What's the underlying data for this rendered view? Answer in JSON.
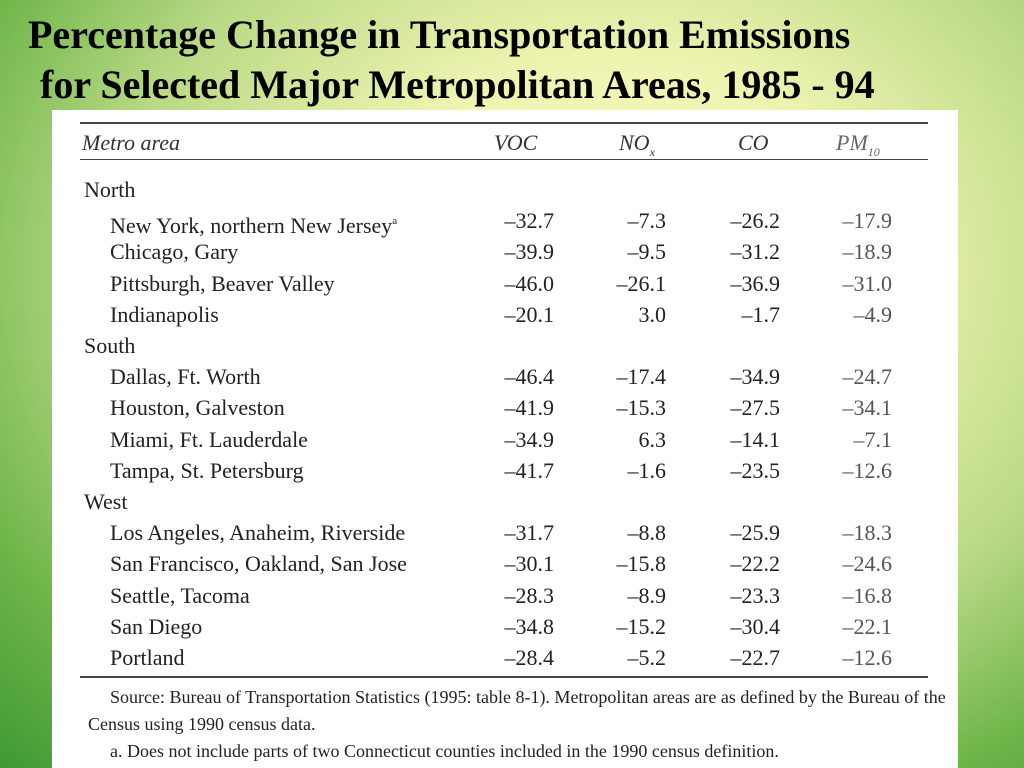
{
  "slide": {
    "title_line1": "Percentage Change in Transportation Emissions",
    "title_line2": "for Selected Major Metropolitan Areas, 1985 - 94"
  },
  "table": {
    "headers": {
      "metro": "Metro area",
      "voc": "VOC",
      "nox_main": "NO",
      "nox_sub": "x",
      "co": "CO",
      "pm_main": "PM",
      "pm_sub": "10"
    },
    "rows": [
      {
        "kind": "region",
        "name": "North"
      },
      {
        "kind": "metro",
        "name": "New York, northern New Jersey",
        "note": "a",
        "voc": "–32.7",
        "nox": "–7.3",
        "co": "–26.2",
        "pm": "–17.9"
      },
      {
        "kind": "metro",
        "name": "Chicago, Gary",
        "voc": "–39.9",
        "nox": "–9.5",
        "co": "–31.2",
        "pm": "–18.9"
      },
      {
        "kind": "metro",
        "name": "Pittsburgh, Beaver Valley",
        "voc": "–46.0",
        "nox": "–26.1",
        "co": "–36.9",
        "pm": "–31.0"
      },
      {
        "kind": "metro",
        "name": "Indianapolis",
        "voc": "–20.1",
        "nox": "3.0",
        "co": "–1.7",
        "pm": "–4.9"
      },
      {
        "kind": "region",
        "name": "South"
      },
      {
        "kind": "metro",
        "name": "Dallas, Ft. Worth",
        "voc": "–46.4",
        "nox": "–17.4",
        "co": "–34.9",
        "pm": "–24.7"
      },
      {
        "kind": "metro",
        "name": "Houston, Galveston",
        "voc": "–41.9",
        "nox": "–15.3",
        "co": "–27.5",
        "pm": "–34.1"
      },
      {
        "kind": "metro",
        "name": "Miami, Ft. Lauderdale",
        "voc": "–34.9",
        "nox": "6.3",
        "co": "–14.1",
        "pm": "–7.1"
      },
      {
        "kind": "metro",
        "name": "Tampa, St. Petersburg",
        "voc": "–41.7",
        "nox": "–1.6",
        "co": "–23.5",
        "pm": "–12.6"
      },
      {
        "kind": "region",
        "name": "West"
      },
      {
        "kind": "metro",
        "name": "Los Angeles, Anaheim, Riverside",
        "voc": "–31.7",
        "nox": "–8.8",
        "co": "–25.9",
        "pm": "–18.3"
      },
      {
        "kind": "metro",
        "name": "San Francisco, Oakland, San Jose",
        "voc": "–30.1",
        "nox": "–15.8",
        "co": "–22.2",
        "pm": "–24.6"
      },
      {
        "kind": "metro",
        "name": "Seattle, Tacoma",
        "voc": "–28.3",
        "nox": "–8.9",
        "co": "–23.3",
        "pm": "–16.8"
      },
      {
        "kind": "metro",
        "name": "San Diego",
        "voc": "–34.8",
        "nox": "–15.2",
        "co": "–30.4",
        "pm": "–22.1"
      },
      {
        "kind": "metro",
        "name": "Portland",
        "voc": "–28.4",
        "nox": "–5.2",
        "co": "–22.7",
        "pm": "–12.6"
      }
    ],
    "source_line1": "Source: Bureau of Transportation Statistics (1995: table 8-1). Metropolitan areas are as defined by the Bureau of the Census using 1990 census data.",
    "source_line2": "a. Does not include parts of two Connecticut counties included in the 1990 census definition."
  }
}
